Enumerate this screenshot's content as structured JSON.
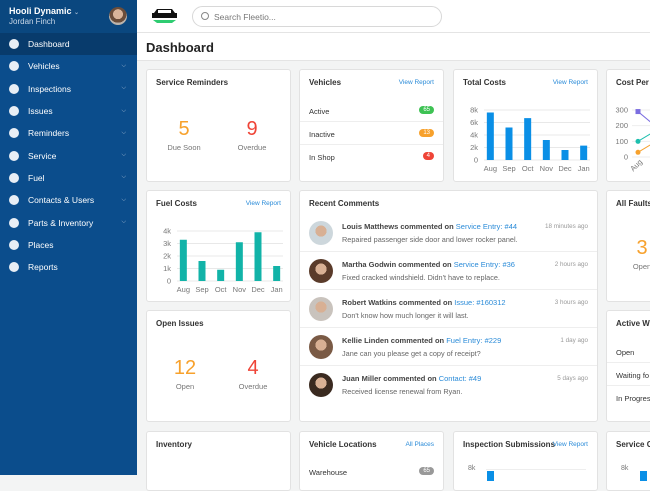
{
  "sidebar": {
    "org": "Hooli Dynamic",
    "user": "Jordan Finch",
    "items": [
      {
        "label": "Dashboard",
        "icon": "dashboard-gauge-icon",
        "active": true
      },
      {
        "label": "Vehicles",
        "icon": "car-icon",
        "chevron": true
      },
      {
        "label": "Inspections",
        "icon": "check-circle-icon",
        "chevron": true
      },
      {
        "label": "Issues",
        "icon": "issue-diamond-icon",
        "chevron": true
      },
      {
        "label": "Reminders",
        "icon": "bell-icon",
        "chevron": true
      },
      {
        "label": "Service",
        "icon": "wrench-icon",
        "chevron": true
      },
      {
        "label": "Fuel",
        "icon": "fuel-pump-icon",
        "chevron": true
      },
      {
        "label": "Contacts & Users",
        "icon": "users-icon",
        "chevron": true
      },
      {
        "label": "Parts & Inventory",
        "icon": "box-icon",
        "chevron": true
      },
      {
        "label": "Places",
        "icon": "places-icon"
      },
      {
        "label": "Reports",
        "icon": "pie-chart-icon"
      }
    ]
  },
  "header": {
    "search_placeholder": "Search Fleetio..."
  },
  "page_title": "Dashboard",
  "view_report": "View Report",
  "service_reminders": {
    "title": "Service Reminders",
    "due_soon": "5",
    "due_soon_label": "Due Soon",
    "overdue": "9",
    "overdue_label": "Overdue"
  },
  "vehicles": {
    "title": "Vehicles",
    "rows": [
      {
        "label": "Active",
        "count": "65",
        "color": "#3ec254"
      },
      {
        "label": "Inactive",
        "count": "13",
        "color": "#f7a12c"
      },
      {
        "label": "In Shop",
        "count": "4",
        "color": "#ef4437"
      }
    ]
  },
  "total_costs": {
    "title": "Total Costs",
    "yticks": [
      "0",
      "2k",
      "4k",
      "6k",
      "8k"
    ],
    "categories": [
      "Aug",
      "Sep",
      "Oct",
      "Nov",
      "Dec",
      "Jan"
    ],
    "values": [
      7600,
      5200,
      6700,
      3200,
      1600,
      2300
    ],
    "ymax": 8000,
    "color": "#0a8fe6"
  },
  "cost_per_meter": {
    "title": "Cost Per M",
    "yticks": [
      "0",
      "100",
      "200",
      "300"
    ],
    "categories": [
      "Aug"
    ],
    "series": [
      {
        "color": "#7b6ee0",
        "values": [
          290
        ]
      },
      {
        "color": "#1dbfae",
        "values": [
          100
        ]
      },
      {
        "color": "#f7a12c",
        "values": [
          30
        ]
      }
    ]
  },
  "fuel_costs": {
    "title": "Fuel Costs",
    "yticks": [
      "0",
      "1k",
      "2k",
      "3k",
      "4k"
    ],
    "categories": [
      "Aug",
      "Sep",
      "Oct",
      "Nov",
      "Dec",
      "Jan"
    ],
    "values": [
      3300,
      1600,
      900,
      3100,
      3900,
      1200
    ],
    "ymax": 4000,
    "color": "#12b3a8"
  },
  "recent_comments": {
    "title": "Recent Comments",
    "items": [
      {
        "name": "Louis Matthews",
        "verb": "commented on",
        "link": "Service Entry: #44",
        "text": "Repaired passenger side door and lower rocker panel.",
        "time": "18 minutes ago"
      },
      {
        "name": "Martha Godwin",
        "verb": "commented on",
        "link": "Service Entry: #36",
        "text": "Fixed cracked windshield. Didn't have to replace.",
        "time": "2 hours ago"
      },
      {
        "name": "Robert Watkins",
        "verb": "commented on",
        "link": "Issue: #160312",
        "text": "Don't know how much longer it will last.",
        "time": "3 hours ago"
      },
      {
        "name": "Kellie Linden",
        "verb": "commented on",
        "link": "Fuel Entry: #229",
        "text": "Jane can you please get a copy of receipt?",
        "time": "1 day ago"
      },
      {
        "name": "Juan Miller",
        "verb": "commented on",
        "link": "Contact: #49",
        "text": "Received license renewal from Ryan.",
        "time": "5 days ago"
      }
    ]
  },
  "all_faults": {
    "title": "All Faults",
    "open": "3",
    "open_label": "Open"
  },
  "open_issues": {
    "title": "Open Issues",
    "open": "12",
    "open_label": "Open",
    "overdue": "4",
    "overdue_label": "Overdue"
  },
  "active_work_orders": {
    "title": "Active Wo",
    "rows": [
      "Open",
      "Waiting fo",
      "In Progres"
    ]
  },
  "inventory": {
    "title": "Inventory"
  },
  "vehicle_locations": {
    "title": "Vehicle Locations",
    "link": "All Places",
    "rows": [
      {
        "label": "Warehouse",
        "count": "65"
      }
    ]
  },
  "inspection_submissions": {
    "title": "Inspection Submissions",
    "ytick": "8k"
  },
  "service_costs": {
    "title": "Service Co",
    "ytick": "8k"
  }
}
